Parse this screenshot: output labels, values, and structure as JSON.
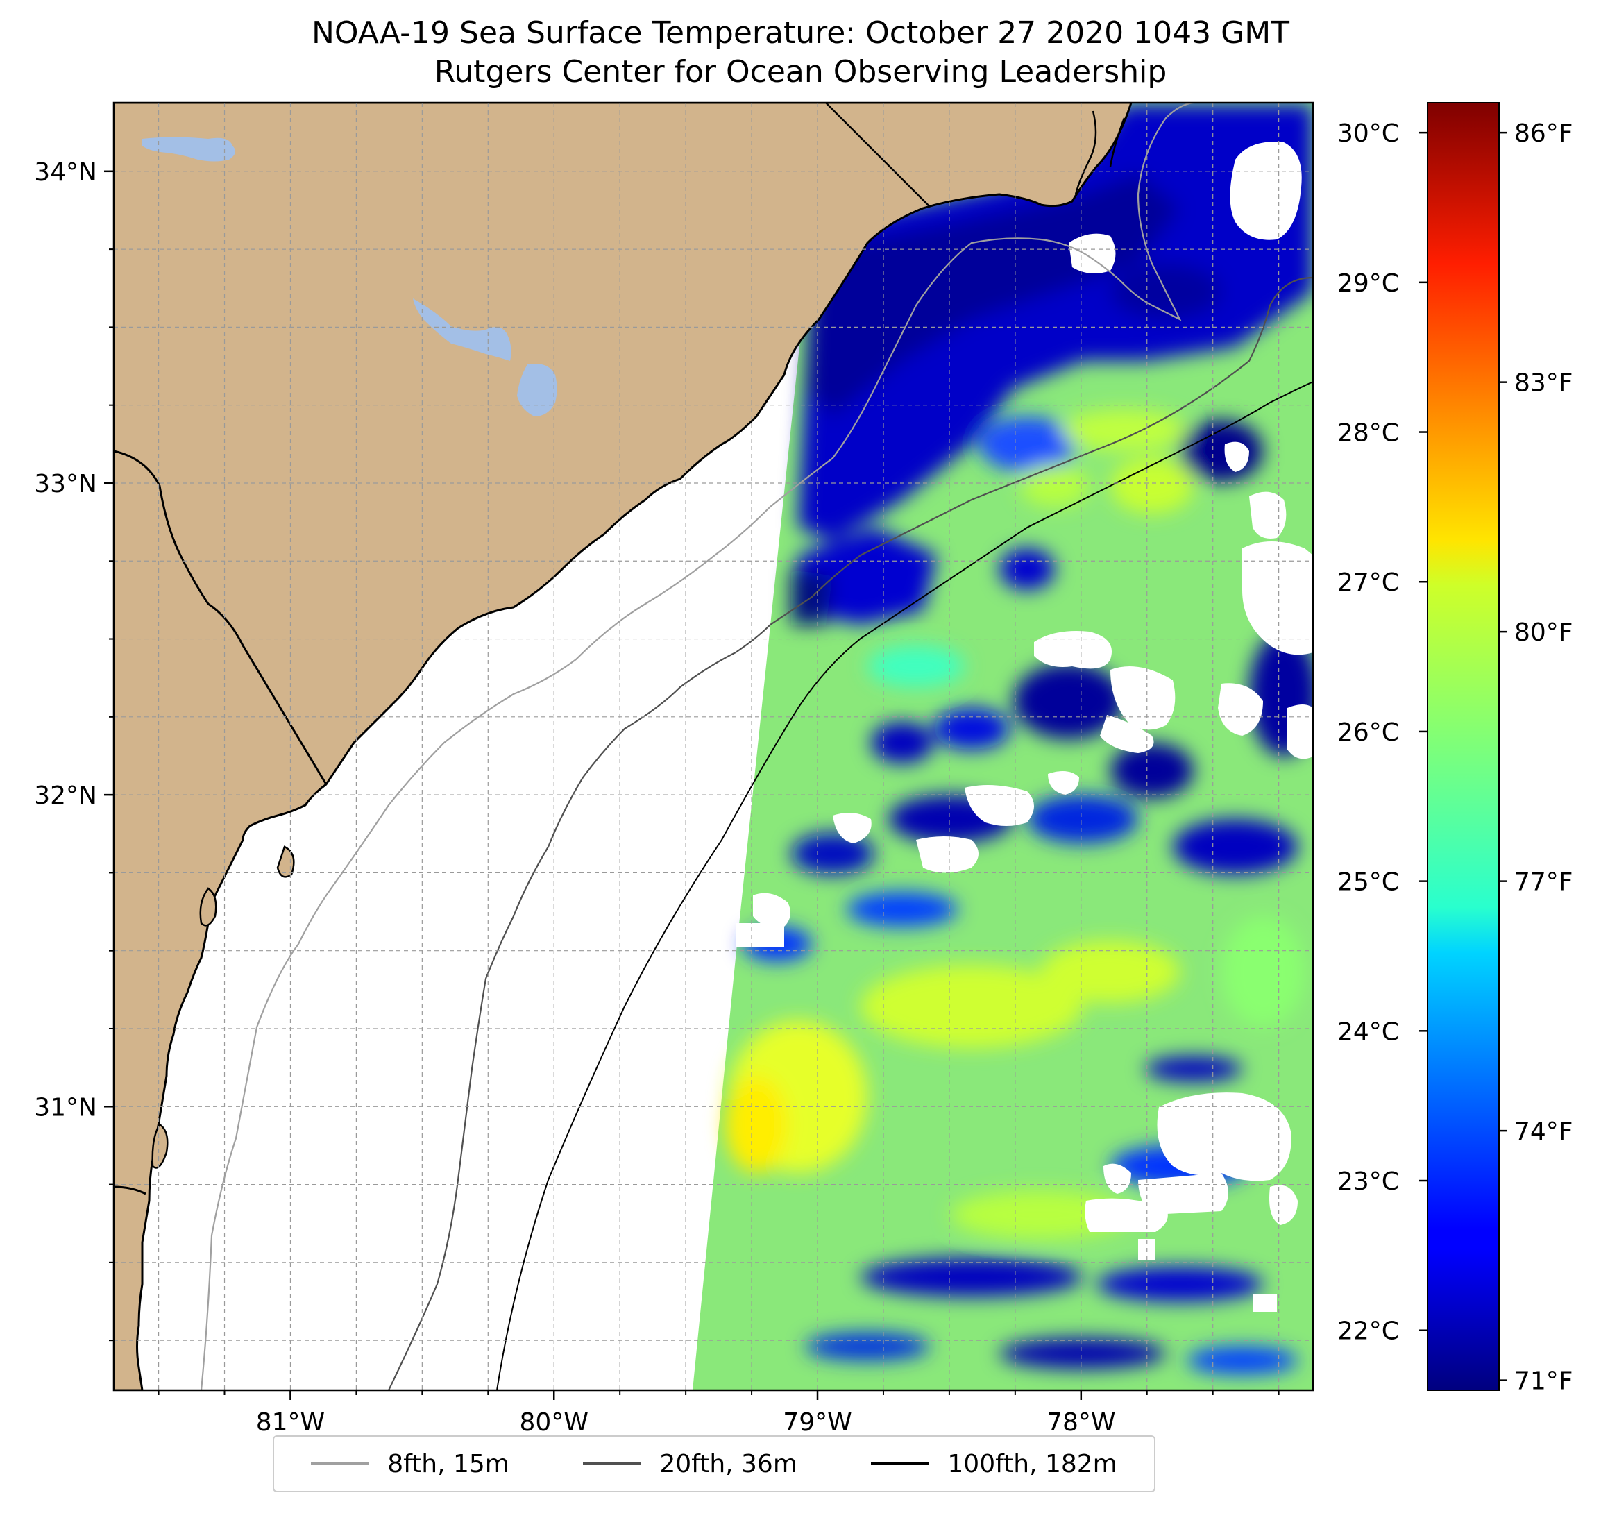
{
  "title": {
    "line1": "NOAA-19 Sea Surface Temperature: October 27 2020 1043 GMT",
    "line2": "Rutgers Center for Ocean Observing Leadership"
  },
  "map": {
    "lon_range": [
      -81.67,
      -77.12
    ],
    "lat_range": [
      30.09,
      34.22
    ],
    "lon_ticks": [
      {
        "value": -81,
        "label": "81°W"
      },
      {
        "value": -80,
        "label": "80°W"
      },
      {
        "value": -79,
        "label": "79°W"
      },
      {
        "value": -78,
        "label": "78°W"
      }
    ],
    "lat_ticks": [
      {
        "value": 34,
        "label": "34°N"
      },
      {
        "value": 33,
        "label": "33°N"
      },
      {
        "value": 32,
        "label": "32°N"
      },
      {
        "value": 31,
        "label": "31°N"
      }
    ],
    "grid": true,
    "land_color": "#d2b48c",
    "water_color": "#a3bfe6",
    "no_data_color": "#ffffff"
  },
  "colorbar": {
    "colormap": "jet",
    "celsius_range": [
      21.6,
      30.2
    ],
    "celsius_ticks": [
      {
        "value": 22,
        "label": "22°C"
      },
      {
        "value": 23,
        "label": "23°C"
      },
      {
        "value": 24,
        "label": "24°C"
      },
      {
        "value": 25,
        "label": "25°C"
      },
      {
        "value": 26,
        "label": "26°C"
      },
      {
        "value": 27,
        "label": "27°C"
      },
      {
        "value": 28,
        "label": "28°C"
      },
      {
        "value": 29,
        "label": "29°C"
      },
      {
        "value": 30,
        "label": "30°C"
      }
    ],
    "fahrenheit_ticks": [
      {
        "value": 71,
        "label": "71°F"
      },
      {
        "value": 74,
        "label": "74°F"
      },
      {
        "value": 77,
        "label": "77°F"
      },
      {
        "value": 80,
        "label": "80°F"
      },
      {
        "value": 83,
        "label": "83°F"
      },
      {
        "value": 86,
        "label": "86°F"
      }
    ]
  },
  "legend": {
    "placement": "bottom-center",
    "items": [
      {
        "label": "8fth, 15m",
        "color": "#a0a0a0"
      },
      {
        "label": "20fth, 36m",
        "color": "#505050"
      },
      {
        "label": "100fth, 182m",
        "color": "#000000"
      }
    ]
  }
}
